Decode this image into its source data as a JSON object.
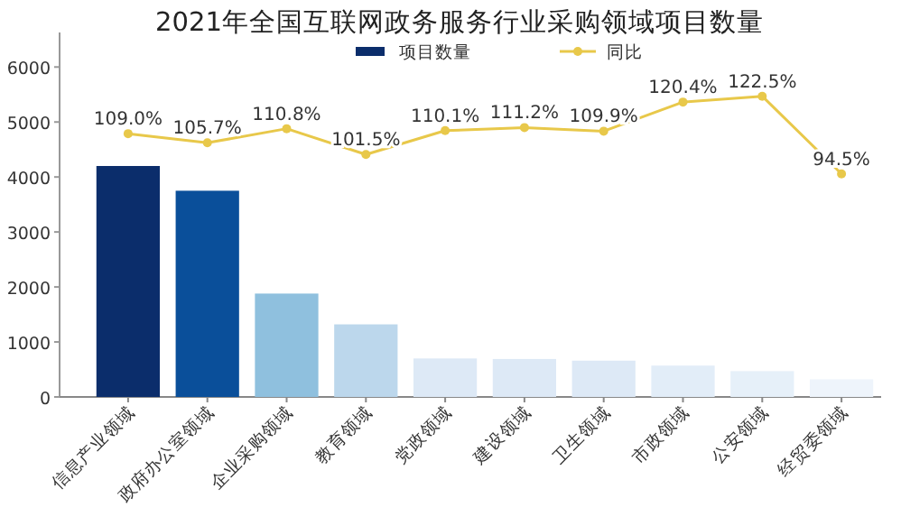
{
  "chart_data": {
    "type": "bar",
    "title": "2021年全国互联网政务服务行业采购领域项目数量",
    "categories": [
      "信息产业领域",
      "政府办公室领域",
      "企业采购领域",
      "教育领域",
      "党政领域",
      "建设领域",
      "卫生领域",
      "市政领域",
      "公安领域",
      "经贸委领域"
    ],
    "series": [
      {
        "name": "项目数量",
        "color": "#0b2d6b",
        "colors": [
          "#0b2d6b",
          "#0a4f9a",
          "#8fc0de",
          "#bcd7ec",
          "#dde9f6",
          "#dde9f6",
          "#dde9f6",
          "#e2edf8",
          "#e6f0f9",
          "#eef4fb"
        ],
        "values": [
          4200,
          3750,
          1880,
          1320,
          700,
          690,
          660,
          570,
          470,
          320
        ]
      },
      {
        "name": "同比",
        "type": "line",
        "axis": "y2",
        "color": "#e8c84a",
        "marker": "circle",
        "values": [
          109.0,
          105.7,
          110.8,
          101.5,
          110.1,
          111.2,
          109.9,
          120.4,
          122.5,
          94.5
        ],
        "value_labels": [
          "109.0%",
          "105.7%",
          "110.8%",
          "101.5%",
          "110.1%",
          "111.2%",
          "109.9%",
          "120.4%",
          "122.5%",
          "94.5%"
        ]
      }
    ],
    "ylim": [
      0,
      6300
    ],
    "yticks": [
      0,
      1000,
      2000,
      3000,
      4000,
      5000,
      6000
    ],
    "y2lim": [
      14,
      139
    ],
    "tick_labels": "y",
    "legend": "top",
    "grid": false
  }
}
